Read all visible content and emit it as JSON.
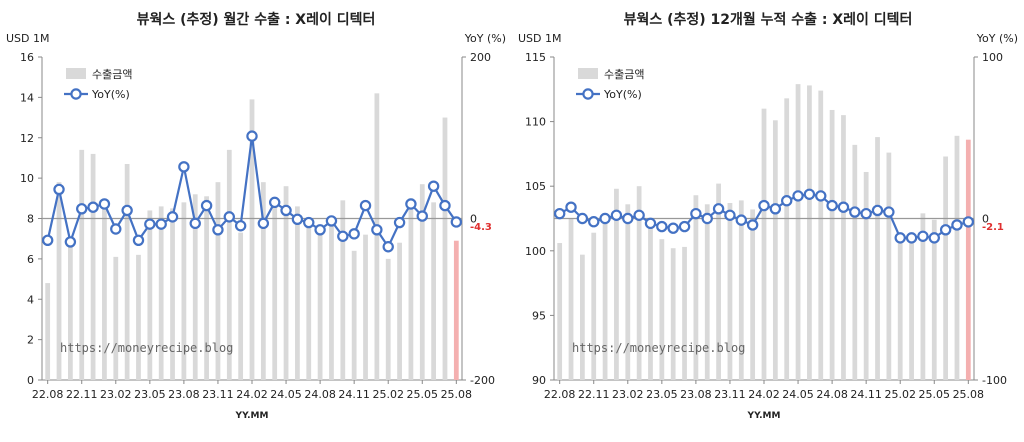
{
  "colors": {
    "bar": "#d9d9d9",
    "bar_last": "#f4b0b0",
    "line": "#4472c4",
    "marker_fill": "#ffffff",
    "last_label": "#e03030",
    "zero_line": "#999999"
  },
  "watermark": "https://moneyrecipe.blog",
  "chart_data": [
    {
      "type": "bar",
      "title": "뷰웍스 (추정) 월간 수출 : X레이 디텍터",
      "ylabel_left": "USD 1M",
      "ylabel_right": "YoY (%)",
      "xlabel": "YY.MM",
      "legend": {
        "bar": "수출금액",
        "line": "YoY(%)",
        "position": "top-left"
      },
      "ylim_left": [
        0,
        16
      ],
      "yticks_left": [
        "0",
        "2",
        "4",
        "6",
        "8",
        "10",
        "12",
        "14",
        "16"
      ],
      "ylim_right": [
        -200,
        200
      ],
      "yticks_right": [
        "-200",
        "200"
      ],
      "right_zero_label": "0",
      "last_yoy_label": "-4.3",
      "x_tick_labels": [
        "22.08",
        "22.11",
        "23.02",
        "23.05",
        "23.08",
        "23.11",
        "24.02",
        "24.05",
        "24.08",
        "24.11",
        "25.02",
        "25.05",
        "25.08"
      ],
      "categories": [
        "22.08",
        "22.09",
        "22.10",
        "22.11",
        "22.12",
        "23.01",
        "23.02",
        "23.03",
        "23.04",
        "23.05",
        "23.06",
        "23.07",
        "23.08",
        "23.09",
        "23.10",
        "23.11",
        "23.12",
        "24.01",
        "24.02",
        "24.03",
        "24.04",
        "24.05",
        "24.06",
        "24.07",
        "24.08",
        "24.09",
        "24.10",
        "24.11",
        "24.12",
        "25.01",
        "25.02",
        "25.03",
        "25.04",
        "25.05",
        "25.06",
        "25.07",
        "25.08"
      ],
      "series": [
        {
          "name": "수출금액",
          "axis": "left",
          "kind": "bar",
          "values": [
            4.8,
            9.8,
            6.7,
            11.4,
            11.2,
            8.8,
            6.1,
            10.7,
            6.2,
            8.4,
            8.6,
            8.5,
            8.8,
            9.2,
            9.1,
            9.8,
            11.4,
            7.3,
            13.9,
            9.8,
            8.8,
            9.6,
            8.6,
            8.0,
            7.5,
            7.7,
            8.9,
            6.4,
            7.2,
            14.2,
            6.0,
            6.8,
            9.0,
            9.7,
            8.8,
            13.0,
            6.9
          ]
        },
        {
          "name": "YoY(%)",
          "axis": "right",
          "kind": "line",
          "values": [
            -27,
            36,
            -29,
            12,
            14,
            18,
            -13,
            10,
            -27,
            -7,
            -7,
            2,
            64,
            -6,
            16,
            -14,
            2,
            -9,
            102,
            -6,
            20,
            10,
            -1,
            -5,
            -14,
            -3,
            -22,
            -19,
            16,
            -14,
            -35,
            -5,
            18,
            3,
            40,
            16,
            -4.3
          ]
        }
      ]
    },
    {
      "type": "bar",
      "title": "뷰웍스 (추정) 12개월 누적 수출 : X레이 디텍터",
      "ylabel_left": "USD 1M",
      "ylabel_right": "YoY (%)",
      "xlabel": "YY.MM",
      "legend": {
        "bar": "수출금액",
        "line": "YoY(%)",
        "position": "top-left"
      },
      "ylim_left": [
        90,
        115
      ],
      "yticks_left": [
        "90",
        "95",
        "100",
        "105",
        "110",
        "115"
      ],
      "ylim_right": [
        -100,
        100
      ],
      "yticks_right": [
        "-100",
        "100"
      ],
      "right_zero_label": "0",
      "last_yoy_label": "-2.1",
      "x_tick_labels": [
        "22.08",
        "22.11",
        "23.02",
        "23.05",
        "23.08",
        "23.11",
        "24.02",
        "24.05",
        "24.08",
        "24.11",
        "25.02",
        "25.05",
        "25.08"
      ],
      "categories": [
        "22.08",
        "22.09",
        "22.10",
        "22.11",
        "22.12",
        "23.01",
        "23.02",
        "23.03",
        "23.04",
        "23.05",
        "23.06",
        "23.07",
        "23.08",
        "23.09",
        "23.10",
        "23.11",
        "23.12",
        "24.01",
        "24.02",
        "24.03",
        "24.04",
        "24.05",
        "24.06",
        "24.07",
        "24.08",
        "24.09",
        "24.10",
        "24.11",
        "24.12",
        "25.01",
        "25.02",
        "25.03",
        "25.04",
        "25.05",
        "25.06",
        "25.07",
        "25.08"
      ],
      "series": [
        {
          "name": "수출금액",
          "axis": "left",
          "kind": "bar",
          "values": [
            100.6,
            102.5,
            99.7,
            101.4,
            102.6,
            104.8,
            103.6,
            105.0,
            102.3,
            100.9,
            100.2,
            100.3,
            104.3,
            103.6,
            105.2,
            103.7,
            103.9,
            103.2,
            111.0,
            110.1,
            111.8,
            112.9,
            112.8,
            112.4,
            110.9,
            110.5,
            108.2,
            106.1,
            108.8,
            107.6,
            101.3,
            100.8,
            102.9,
            102.4,
            107.3,
            108.9,
            108.6
          ]
        },
        {
          "name": "YoY(%)",
          "axis": "right",
          "kind": "line",
          "values": [
            3,
            7,
            0,
            -2,
            0,
            2,
            0,
            2,
            -3,
            -5,
            -6,
            -5,
            3,
            0,
            6,
            2,
            -1,
            -4,
            8,
            6,
            11,
            14,
            15,
            14,
            8,
            7,
            4,
            3,
            5,
            4,
            -12,
            -12,
            -11,
            -12,
            -7,
            -4,
            -2.1
          ]
        }
      ]
    }
  ]
}
